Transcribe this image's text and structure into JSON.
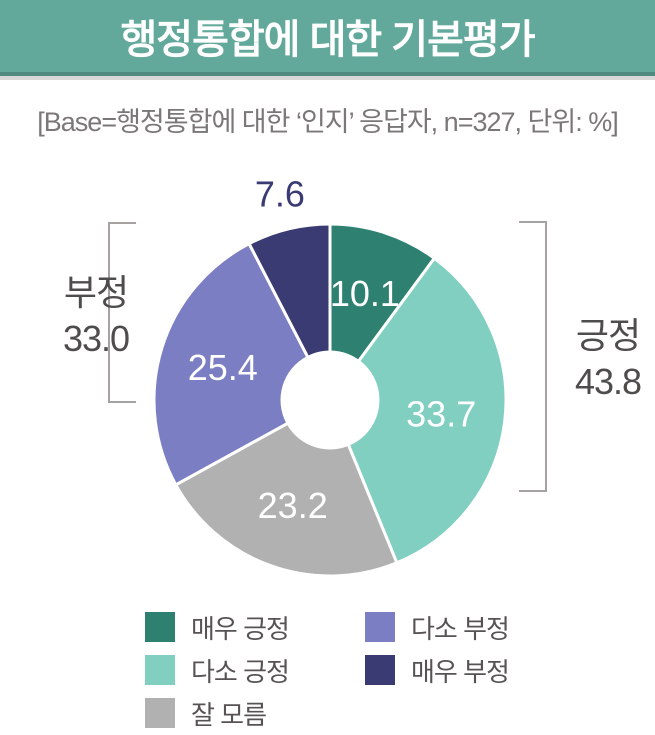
{
  "header": {
    "title": "행정통합에 대한 기본평가"
  },
  "base_note": "[Base=행정통합에 대한 ‘인지’ 응답자, n=327, 단위: %]",
  "colors": {
    "header_bg": "#62a99b",
    "header_border": "#4e8a7d",
    "header_shadow_line": "#d8d8d8",
    "bracket": "#a5a2a1",
    "note_text": "#7b7777",
    "group_label_text": "#4f4c4c",
    "legend_text": "#575354",
    "slice_value_text": "#ffffff"
  },
  "chart_data": {
    "type": "pie",
    "donut": true,
    "title": "행정통합에 대한 기본평가",
    "subtitle": "[Base=행정통합에 대한 ‘인지’ 응답자, n=327, 단위: %]",
    "unit": "%",
    "base_n": 327,
    "start_angle_deg": 0,
    "clockwise": true,
    "slices": [
      {
        "label": "매우 긍정",
        "value": 10.1,
        "color": "#2e8170"
      },
      {
        "label": "다소 긍정",
        "value": 33.7,
        "color": "#80cfc0"
      },
      {
        "label": "잘 모름",
        "value": 23.2,
        "color": "#b1b1b2"
      },
      {
        "label": "다소 부정",
        "value": 25.4,
        "color": "#7c7ec3"
      },
      {
        "label": "매우 부정",
        "value": 7.6,
        "color": "#3a3b73",
        "label_outside": true
      }
    ],
    "group_brackets": [
      {
        "label": "긍정",
        "value": "43.8",
        "side": "right"
      },
      {
        "label": "부정",
        "value": "33.0",
        "side": "left"
      }
    ],
    "legend_columns": [
      [
        0,
        1,
        2
      ],
      [
        3,
        4
      ]
    ]
  }
}
